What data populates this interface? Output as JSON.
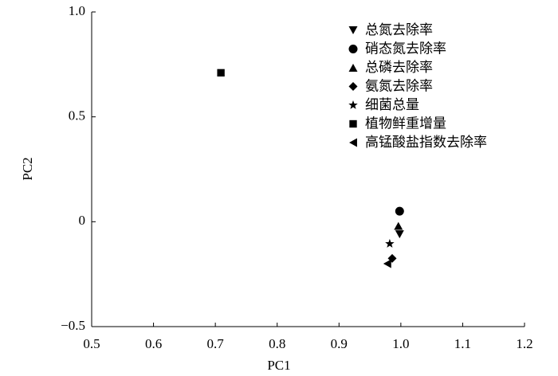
{
  "chart_data": {
    "type": "scatter",
    "xlabel": "PC1",
    "ylabel": "PC2",
    "xlim": [
      0.5,
      1.2
    ],
    "ylim": [
      -0.5,
      1.0
    ],
    "xticks": [
      0.5,
      0.6,
      0.7,
      0.8,
      0.9,
      {
        "value": 1,
        "label": "1.0"
      },
      1.1,
      1.2
    ],
    "yticks": [
      {
        "value": -0.5,
        "label": "−0.5"
      },
      0,
      0.5,
      {
        "value": 1,
        "label": "1.0"
      }
    ],
    "legend": "upper-right",
    "series": [
      {
        "name": "总氮去除率",
        "marker": "triangle-down",
        "color": "#000000",
        "x": [
          0.998
        ],
        "values": [
          -0.06
        ]
      },
      {
        "name": "硝态氮去除率",
        "marker": "circle",
        "color": "#000000",
        "x": [
          0.998
        ],
        "values": [
          0.05
        ]
      },
      {
        "name": "总磷去除率",
        "marker": "triangle-up",
        "color": "#000000",
        "x": [
          0.996
        ],
        "values": [
          -0.02
        ]
      },
      {
        "name": "氨氮去除率",
        "marker": "diamond",
        "color": "#000000",
        "x": [
          0.986
        ],
        "values": [
          -0.175
        ]
      },
      {
        "name": "细菌总量",
        "marker": "star",
        "color": "#000000",
        "x": [
          0.982
        ],
        "values": [
          -0.105
        ]
      },
      {
        "name": "植物鲜重增量",
        "marker": "square",
        "color": "#000000",
        "x": [
          0.709
        ],
        "values": [
          0.71
        ]
      },
      {
        "name": "高锰酸盐指数去除率",
        "marker": "triangle-left",
        "color": "#000000",
        "x": [
          0.978
        ],
        "values": [
          -0.2
        ]
      }
    ]
  }
}
